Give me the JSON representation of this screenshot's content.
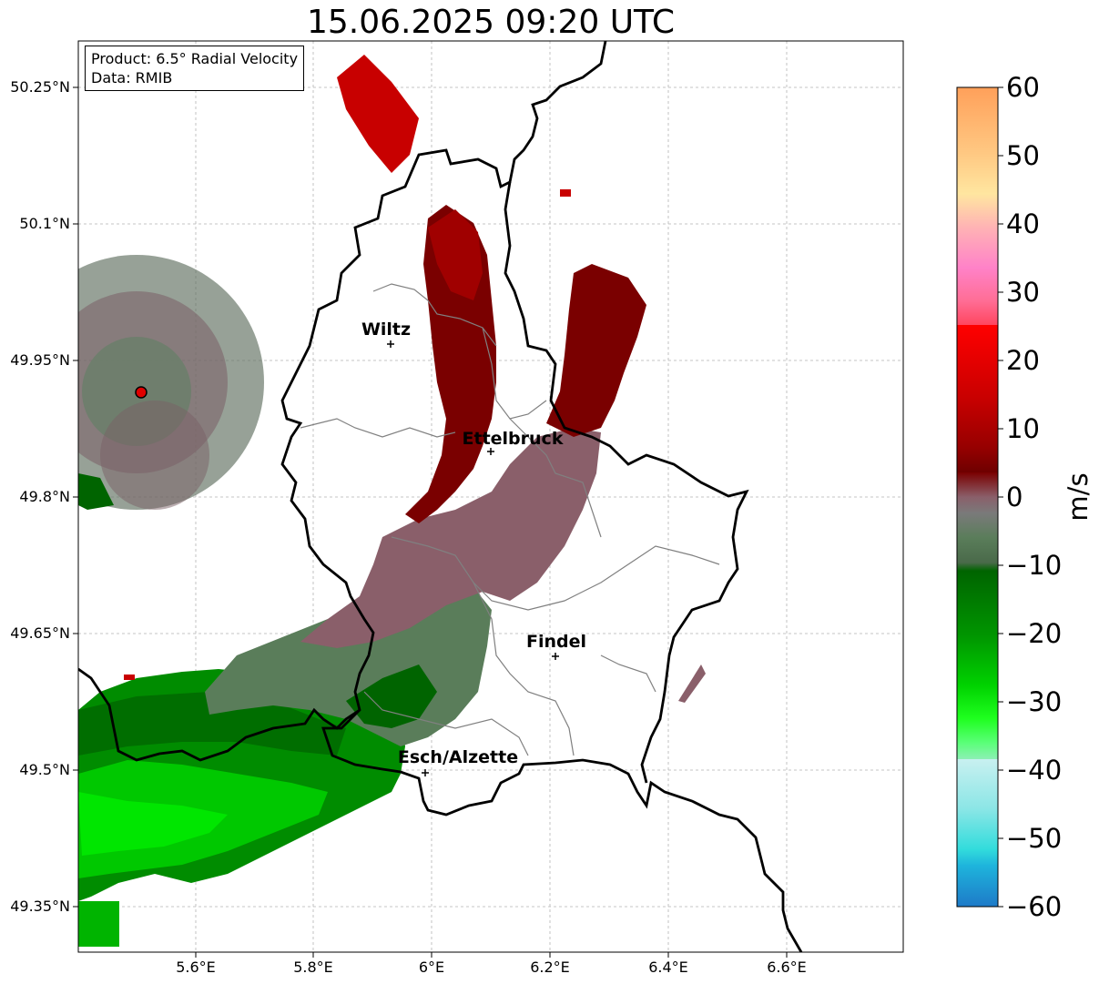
{
  "title": "15.06.2025 09:20 UTC",
  "info": {
    "product": "Product: 6.5° Radial Velocity",
    "data": "Data: RMIB"
  },
  "axes": {
    "lat_labels": [
      "50.25°N",
      "50.1°N",
      "49.95°N",
      "49.8°N",
      "49.65°N",
      "49.5°N",
      "49.35°N"
    ],
    "lon_labels": [
      "5.6°E",
      "5.8°E",
      "6°E",
      "6.2°E",
      "6.4°E",
      "6.6°E"
    ]
  },
  "cities": [
    {
      "name": "Wiltz"
    },
    {
      "name": "Ettelbruck"
    },
    {
      "name": "Findel"
    },
    {
      "name": "Esch/Alzette"
    }
  ],
  "colorbar": {
    "label": "m/s",
    "ticks": [
      "60",
      "50",
      "40",
      "30",
      "20",
      "10",
      "0",
      "−10",
      "−20",
      "−30",
      "−40",
      "−50",
      "−60"
    ],
    "range": [
      -60,
      60
    ]
  },
  "colors": {
    "strong_inbound": "#00b400",
    "inbound": "#006400",
    "near_zero_neg": "#5a7d5a",
    "near_zero_pos": "#8a5f6a",
    "outbound": "#7a0000",
    "strong_outbound": "#c80000"
  }
}
